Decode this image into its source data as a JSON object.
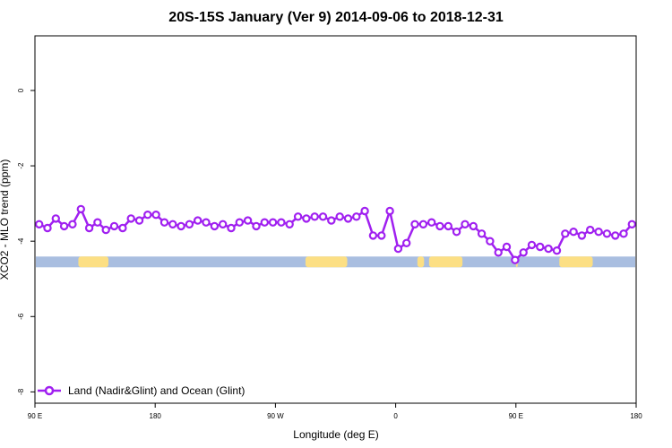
{
  "chart_data": {
    "type": "line",
    "title": "20S-15S January (Ver 9)   2014-09-06 to 2018-12-31",
    "xlabel": "Longitude (deg E)",
    "ylabel": "XCO2 - MLO trend (ppm)",
    "xlim": [
      90,
      450
    ],
    "ylim": [
      -8.3,
      1.45
    ],
    "x_ticks": [
      {
        "value": 90,
        "label": "90 E"
      },
      {
        "value": 162,
        "label": "180"
      },
      {
        "value": 234,
        "label": "90 W"
      },
      {
        "value": 306,
        "label": "0"
      },
      {
        "value": 378,
        "label": "90 E"
      },
      {
        "value": 450,
        "label": "180"
      }
    ],
    "y_ticks": [
      {
        "value": 0,
        "label": "0"
      },
      {
        "value": -2,
        "label": "-2"
      },
      {
        "value": -4,
        "label": "-4"
      },
      {
        "value": -6,
        "label": "-6"
      },
      {
        "value": -8,
        "label": "-8"
      }
    ],
    "grid": false,
    "legend_position": "bottom-left",
    "series": [
      {
        "name": "Land (Nadir&Glint) and Ocean (Glint)",
        "color": "#a020f0",
        "marker": "open-circle",
        "x": [
          92.5,
          97.5,
          102.5,
          107.5,
          112.5,
          117.5,
          122.5,
          127.5,
          132.5,
          137.5,
          142.5,
          147.5,
          152.5,
          157.5,
          162.5,
          167.5,
          172.5,
          177.5,
          182.5,
          187.5,
          192.5,
          197.5,
          202.5,
          207.5,
          212.5,
          217.5,
          222.5,
          227.5,
          232.5,
          237.5,
          242.5,
          247.5,
          252.5,
          257.5,
          262.5,
          267.5,
          272.5,
          277.5,
          282.5,
          287.5,
          292.5,
          297.5,
          302.5,
          307.5,
          312.5,
          317.5,
          322.5,
          327.5,
          332.5,
          337.5,
          342.5,
          347.5,
          352.5,
          357.5,
          362.5,
          367.5,
          372.5,
          377.5,
          382.5,
          387.5,
          392.5,
          397.5,
          402.5,
          407.5,
          412.5,
          417.5,
          422.5,
          427.5,
          432.5,
          437.5,
          442.5,
          447.5
        ],
        "y": [
          -3.55,
          -3.65,
          -3.4,
          -3.6,
          -3.55,
          -3.15,
          -3.65,
          -3.5,
          -3.7,
          -3.6,
          -3.65,
          -3.4,
          -3.45,
          -3.3,
          -3.3,
          -3.5,
          -3.55,
          -3.6,
          -3.55,
          -3.45,
          -3.5,
          -3.6,
          -3.55,
          -3.65,
          -3.5,
          -3.45,
          -3.6,
          -3.5,
          -3.5,
          -3.5,
          -3.55,
          -3.35,
          -3.4,
          -3.35,
          -3.35,
          -3.45,
          -3.35,
          -3.4,
          -3.35,
          -3.2,
          -3.85,
          -3.85,
          -3.2,
          -4.2,
          -4.05,
          -3.55,
          -3.55,
          -3.5,
          -3.6,
          -3.6,
          -3.75,
          -3.55,
          -3.6,
          -3.8,
          -4.0,
          -4.3,
          -4.15,
          -4.5,
          -4.3,
          -4.1,
          -4.15,
          -4.2,
          -4.25,
          -3.8,
          -3.75,
          -3.85,
          -3.7,
          -3.75,
          -3.8,
          -3.85,
          -3.8,
          -3.55
        ]
      }
    ]
  },
  "surface_strip": {
    "y_value": -4.55,
    "ocean_color": "#a9bee0",
    "land_color": "#fcdf84",
    "land_segments": [
      [
        116,
        134
      ],
      [
        252,
        277
      ],
      [
        319,
        323
      ],
      [
        326,
        346
      ],
      [
        378,
        378
      ],
      [
        404,
        424
      ]
    ]
  }
}
